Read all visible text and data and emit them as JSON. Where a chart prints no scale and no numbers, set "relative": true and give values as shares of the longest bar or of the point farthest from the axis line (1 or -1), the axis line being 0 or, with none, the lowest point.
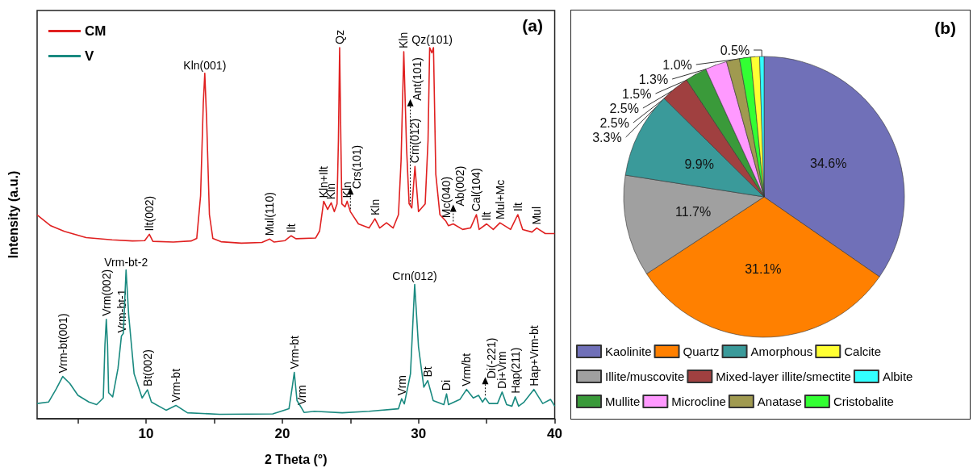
{
  "chart_data": [
    {
      "type": "line",
      "title": "(a)",
      "xlabel": "2 Theta (°)",
      "ylabel": "Intensity (a.u.)",
      "relative": true,
      "tick_labels": "x",
      "legend": "top left",
      "xlim": [
        2,
        40
      ],
      "xticks": [
        {
          "value": 5,
          "label": null
        },
        10,
        {
          "value": 15,
          "label": null
        },
        20,
        {
          "value": 25,
          "label": null
        },
        30,
        {
          "value": 35,
          "label": null
        },
        40
      ],
      "series": [
        {
          "name": "CM",
          "color": "#e02020",
          "x": [
            2.0,
            3.0,
            4.0,
            5.6,
            7.5,
            9.0,
            9.9,
            10.24,
            10.5,
            12.0,
            13.3,
            13.72,
            14.0,
            14.2,
            14.31,
            14.45,
            14.65,
            14.9,
            15.5,
            17.0,
            18.5,
            19.08,
            19.4,
            20.2,
            20.65,
            21.0,
            22.45,
            22.74,
            23.04,
            23.33,
            23.59,
            23.82,
            24.02,
            24.12,
            24.21,
            24.3,
            24.37,
            24.61,
            24.76,
            25.0,
            25.59,
            26.37,
            26.8,
            27.15,
            27.65,
            28.14,
            28.53,
            28.72,
            28.92,
            29.12,
            29.31,
            29.51,
            29.74,
            30.0,
            30.49,
            30.7,
            30.82,
            30.98,
            31.1,
            31.27,
            31.57,
            32.02,
            32.2,
            32.55,
            33.24,
            33.82,
            34.25,
            34.45,
            35.0,
            35.49,
            35.98,
            36.76,
            37.29,
            37.65,
            38.33,
            38.68,
            39.31,
            40.0
          ],
          "values": [
            0.549,
            0.52,
            0.505,
            0.488,
            0.482,
            0.479,
            0.48,
            0.497,
            0.478,
            0.476,
            0.479,
            0.486,
            0.6,
            0.85,
            0.931,
            0.8,
            0.55,
            0.486,
            0.477,
            0.473,
            0.475,
            0.484,
            0.476,
            0.48,
            0.493,
            0.485,
            0.487,
            0.506,
            0.586,
            0.564,
            0.582,
            0.558,
            0.579,
            0.75,
            1.0,
            0.75,
            0.579,
            0.571,
            0.586,
            0.558,
            0.525,
            0.514,
            0.539,
            0.514,
            0.528,
            0.514,
            0.55,
            0.695,
            0.989,
            0.732,
            0.579,
            0.568,
            0.68,
            0.558,
            0.579,
            0.75,
            1.0,
            0.986,
            1.0,
            0.659,
            0.55,
            0.532,
            0.52,
            0.525,
            0.51,
            0.514,
            0.55,
            0.51,
            0.525,
            0.51,
            0.528,
            0.51,
            0.55,
            0.51,
            0.503,
            0.514,
            0.499,
            0.499
          ]
        },
        {
          "name": "V",
          "color": "#1a8a80",
          "x": [
            2.0,
            2.84,
            3.4,
            3.88,
            4.4,
            5.0,
            5.8,
            6.37,
            6.86,
            6.98,
            7.08,
            7.17,
            7.25,
            7.55,
            7.94,
            8.19,
            8.33,
            8.53,
            8.72,
            9.12,
            9.71,
            10.1,
            10.39,
            11.47,
            12.19,
            13.04,
            15.4,
            19.3,
            20.49,
            20.75,
            20.88,
            21.08,
            21.43,
            21.6,
            22.35,
            24.4,
            26.37,
            28.53,
            28.76,
            28.96,
            29.41,
            29.72,
            30.0,
            30.39,
            30.68,
            31.08,
            31.86,
            32.06,
            32.2,
            33.04,
            33.53,
            34.02,
            34.41,
            34.7,
            34.9,
            35.19,
            35.8,
            36.14,
            36.47,
            36.86,
            37.1,
            37.35,
            37.75,
            38.47,
            39.12,
            39.7,
            40.0
          ],
          "values": [
            0.041,
            0.045,
            0.08,
            0.114,
            0.095,
            0.063,
            0.045,
            0.038,
            0.056,
            0.2,
            0.268,
            0.2,
            0.07,
            0.059,
            0.136,
            0.223,
            0.23,
            0.401,
            0.281,
            0.121,
            0.056,
            0.078,
            0.045,
            0.023,
            0.036,
            0.016,
            0.012,
            0.013,
            0.027,
            0.09,
            0.125,
            0.049,
            0.028,
            0.017,
            0.02,
            0.016,
            0.02,
            0.027,
            0.054,
            0.04,
            0.121,
            0.362,
            0.194,
            0.085,
            0.103,
            0.049,
            0.038,
            0.067,
            0.038,
            0.052,
            0.079,
            0.056,
            0.063,
            0.045,
            0.056,
            0.041,
            0.041,
            0.072,
            0.038,
            0.034,
            0.059,
            0.034,
            0.045,
            0.079,
            0.041,
            0.052,
            0.034
          ]
        }
      ],
      "annotations": [
        {
          "text": "Ilt(002)",
          "x": 10.24,
          "y": 0.497
        },
        {
          "text": "Kln(001)",
          "x": 14.31,
          "y": 0.931
        },
        {
          "text": "Mul(110)",
          "x": 19.08,
          "y": 0.484
        },
        {
          "text": "Ilt",
          "x": 20.65,
          "y": 0.493
        },
        {
          "text": "Kln+Ilt",
          "x": 23.04,
          "y": 0.586
        },
        {
          "text": "Kln",
          "x": 23.59,
          "y": 0.582
        },
        {
          "text": "Qz",
          "x": 24.21,
          "y": 1.0
        },
        {
          "text": "Kln",
          "x": 24.76,
          "y": 0.586
        },
        {
          "text": "Crs(101)",
          "x": 25.0,
          "y": 0.558
        },
        {
          "text": "Kln",
          "x": 26.8,
          "y": 0.539
        },
        {
          "text": "Kln",
          "x": 28.92,
          "y": 0.989
        },
        {
          "text": "Ant(101)",
          "x": 29.4,
          "y": 0.57
        },
        {
          "text": "Crn(012)",
          "x": 29.74,
          "y": 0.68
        },
        {
          "text": "Qz(101)",
          "x": 31.0,
          "y": 1.0
        },
        {
          "text": "Mc(040)",
          "x": 32.02,
          "y": 0.532
        },
        {
          "text": "Ab(002)",
          "x": 32.55,
          "y": 0.525
        },
        {
          "text": "Cal(104)",
          "x": 34.25,
          "y": 0.55
        },
        {
          "text": "Ilt",
          "x": 35.0,
          "y": 0.525
        },
        {
          "text": "Mul+Mc",
          "x": 35.98,
          "y": 0.528
        },
        {
          "text": "Ilt",
          "x": 37.29,
          "y": 0.55
        },
        {
          "text": "Mul",
          "x": 38.68,
          "y": 0.514
        },
        {
          "text": "Vrm-bt(001)",
          "x": 3.88,
          "y": 0.114
        },
        {
          "text": "Vrm(002)",
          "x": 7.08,
          "y": 0.268
        },
        {
          "text": "Vrm-bt-1",
          "x": 8.19,
          "y": 0.223
        },
        {
          "text": "Vrm-bt-2",
          "x": 8.53,
          "y": 0.401
        },
        {
          "text": "Bt(002)",
          "x": 10.1,
          "y": 0.078
        },
        {
          "text": "Vrm-bt",
          "x": 12.19,
          "y": 0.036
        },
        {
          "text": "Vrm-bt",
          "x": 20.88,
          "y": 0.125
        },
        {
          "text": "Vrm",
          "x": 21.43,
          "y": 0.028
        },
        {
          "text": "Vrm",
          "x": 28.76,
          "y": 0.054
        },
        {
          "text": "Crn(012)",
          "x": 29.72,
          "y": 0.362
        },
        {
          "text": "Bt",
          "x": 30.68,
          "y": 0.103
        },
        {
          "text": "Di",
          "x": 32.06,
          "y": 0.067
        },
        {
          "text": "Vrm/bt",
          "x": 33.53,
          "y": 0.079
        },
        {
          "text": "Di(-221)",
          "x": 34.9,
          "y": 0.056
        },
        {
          "text": "Di+Vrm",
          "x": 36.14,
          "y": 0.072
        },
        {
          "text": "Hap(211)",
          "x": 37.1,
          "y": 0.059
        },
        {
          "text": "Hap+Vrm-bt",
          "x": 38.47,
          "y": 0.079
        }
      ]
    },
    {
      "type": "pie",
      "title": "(b)",
      "legend": "bottom",
      "categories": [
        "Kaolinite",
        "Quartz",
        "Illite/muscovite",
        "Amorphous",
        "Mixed-layer illite/smectite",
        "Mullite",
        "Microcline",
        "Anatase",
        "Cristobalite",
        "Calcite",
        "Albite"
      ],
      "values": [
        34.6,
        31.1,
        11.7,
        9.9,
        3.3,
        2.5,
        2.5,
        1.5,
        1.3,
        1.0,
        0.5
      ],
      "colors": [
        "#7070b8",
        "#ff8000",
        "#a0a0a0",
        "#3a9a9a",
        "#a04040",
        "#3a9a3a",
        "#ff99ff",
        "#a09a50",
        "#33ff33",
        "#ffff33",
        "#33ffff"
      ],
      "value_labels": [
        "34.6%",
        "31.1%",
        "11.7%",
        "9.9%",
        "3.3%",
        "2.5%",
        "2.5%",
        "1.5%",
        "1.3%",
        "1.0%",
        "0.5%"
      ]
    }
  ]
}
